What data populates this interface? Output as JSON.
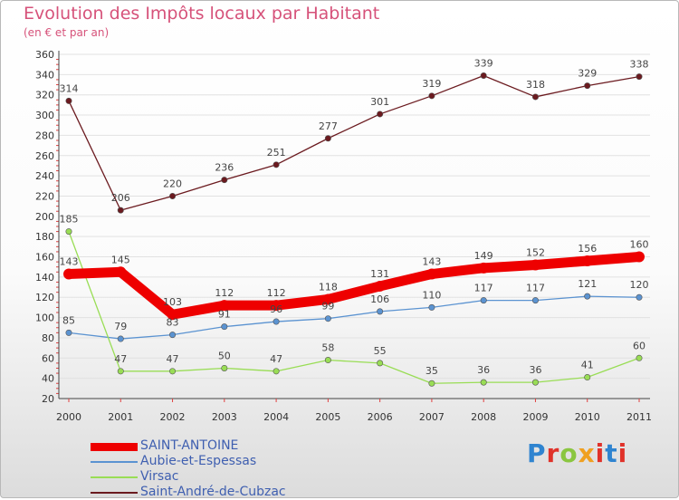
{
  "chart_data": {
    "type": "line",
    "title": "Evolution des Impôts locaux par Habitant",
    "subtitle": "(en € et par an)",
    "xlabel": "",
    "ylabel": "",
    "ylim": [
      20,
      360
    ],
    "yticks": [
      20,
      40,
      60,
      80,
      100,
      120,
      140,
      160,
      180,
      200,
      220,
      240,
      260,
      280,
      300,
      320,
      340,
      360
    ],
    "categories": [
      "2000",
      "2001",
      "2002",
      "2003",
      "2004",
      "2005",
      "2006",
      "2007",
      "2008",
      "2009",
      "2010",
      "2011"
    ],
    "series": [
      {
        "name": "SAINT-ANTOINE",
        "color": "#ee0000",
        "values": [
          143,
          145,
          103,
          112,
          112,
          118,
          131,
          143,
          149,
          152,
          156,
          160
        ]
      },
      {
        "name": "Aubie-et-Espessas",
        "color": "#5b93d1",
        "values": [
          85,
          79,
          83,
          91,
          96,
          99,
          106,
          110,
          117,
          117,
          121,
          120
        ]
      },
      {
        "name": "Virsac",
        "color": "#99dd55",
        "values": [
          185,
          47,
          47,
          50,
          47,
          58,
          55,
          35,
          36,
          36,
          41,
          60
        ]
      },
      {
        "name": "Saint-André-de-Cubzac",
        "color": "#6b1a1f",
        "values": [
          314,
          206,
          220,
          236,
          251,
          277,
          301,
          319,
          339,
          318,
          329,
          338
        ]
      }
    ]
  },
  "brand": {
    "letters": [
      "P",
      "r",
      "o",
      "x",
      "i",
      "t",
      "i"
    ],
    "colors": [
      "#2f84d0",
      "#e0322a",
      "#8ac640",
      "#f0a020",
      "#e0322a",
      "#2f84d0",
      "#e0322a"
    ]
  }
}
